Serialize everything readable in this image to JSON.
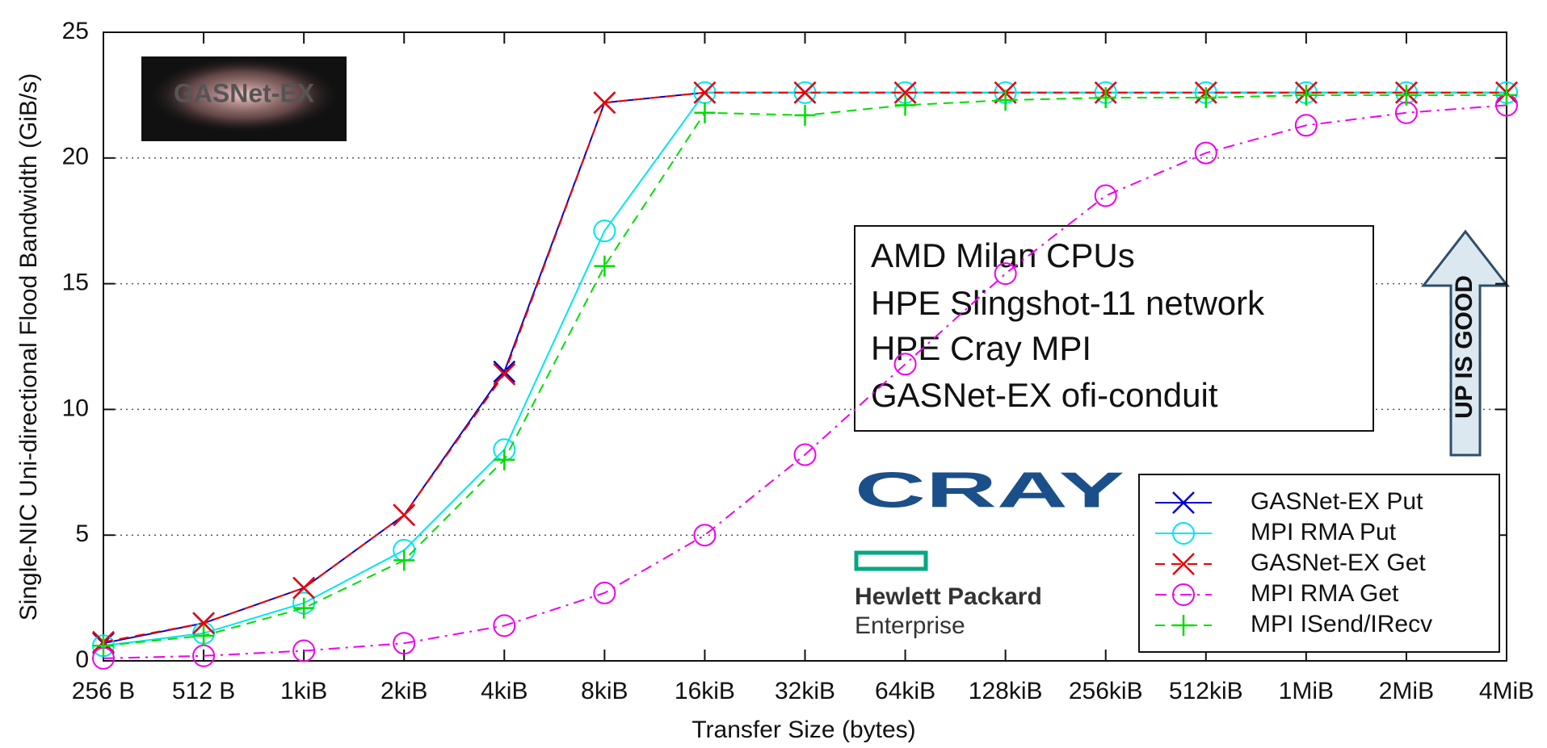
{
  "chart_data": {
    "type": "line",
    "xlabel": "Transfer Size (bytes)",
    "ylabel": "Single-NIC Uni-directional Flood Bandwidth (GiB/s)",
    "categories": [
      "256 B",
      "512 B",
      "1kiB",
      "2kiB",
      "4kiB",
      "8kiB",
      "16kiB",
      "32kiB",
      "64kiB",
      "128kiB",
      "256kiB",
      "512kiB",
      "1MiB",
      "2MiB",
      "4MiB"
    ],
    "series": [
      {
        "name": "GASNet-EX Put",
        "color": "#0000cc",
        "marker": "x",
        "dash": "solid",
        "values": [
          0.7,
          1.5,
          2.9,
          5.8,
          11.5,
          22.2,
          22.6,
          22.6,
          22.6,
          22.6,
          22.6,
          22.6,
          22.6,
          22.6,
          22.6
        ]
      },
      {
        "name": "MPI RMA Put",
        "color": "#00e5ee",
        "marker": "circle",
        "dash": "solid",
        "values": [
          0.6,
          1.1,
          2.3,
          4.4,
          8.4,
          17.1,
          22.6,
          22.6,
          22.6,
          22.6,
          22.6,
          22.6,
          22.6,
          22.6,
          22.6
        ]
      },
      {
        "name": "GASNet-EX Get",
        "color": "#ee0000",
        "marker": "x",
        "dash": "dashed",
        "values": [
          0.75,
          1.5,
          2.9,
          5.8,
          11.4,
          22.2,
          22.6,
          22.6,
          22.6,
          22.6,
          22.6,
          22.6,
          22.6,
          22.6,
          22.6
        ]
      },
      {
        "name": "MPI RMA Get",
        "color": "#ee00ee",
        "marker": "circle",
        "dash": "dashdot",
        "values": [
          0.1,
          0.2,
          0.4,
          0.7,
          1.4,
          2.7,
          5.0,
          8.2,
          11.8,
          15.4,
          18.5,
          20.2,
          21.3,
          21.8,
          22.1
        ]
      },
      {
        "name": "MPI ISend/IRecv",
        "color": "#00dd00",
        "marker": "plus",
        "dash": "dashed",
        "values": [
          0.6,
          1.0,
          2.1,
          4.0,
          8.0,
          15.7,
          21.8,
          21.7,
          22.1,
          22.3,
          22.4,
          22.4,
          22.5,
          22.5,
          22.5
        ]
      }
    ],
    "ylim": [
      0,
      25
    ],
    "yticks": [
      0,
      5,
      10,
      15,
      20,
      25
    ],
    "grid": true,
    "legend": "lower right",
    "annotation_lines": [
      "AMD Milan CPUs",
      "HPE Slingshot-11 network",
      "HPE Cray MPI",
      "GASNet-EX ofi-conduit"
    ],
    "logo_texts": [
      "GASNet-EX",
      "CRAY",
      "Hewlett Packard",
      "Enterprise"
    ],
    "callout": "UP IS GOOD"
  }
}
